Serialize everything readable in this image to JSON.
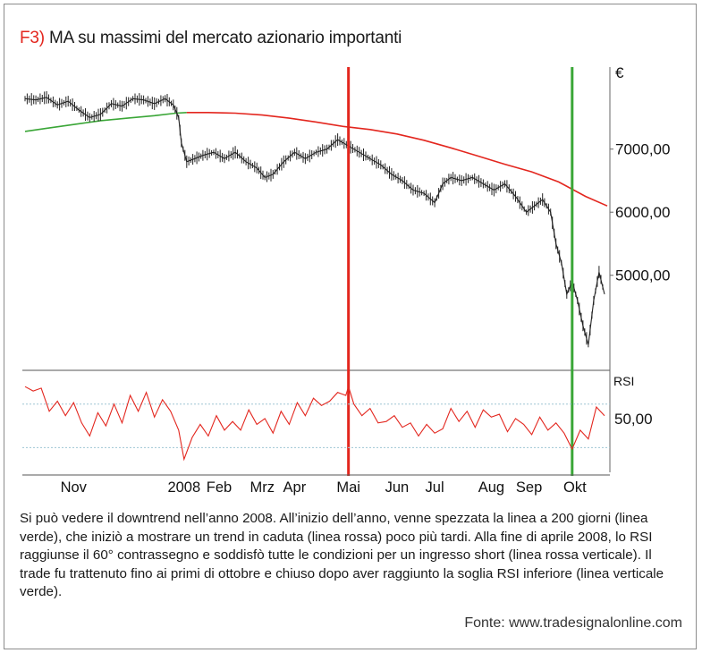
{
  "header": {
    "figure_label": "F3)",
    "title": "MA su massimi del mercato azionario importanti"
  },
  "caption": "Si può vedere il downtrend nell’anno 2008. All’inizio dell’anno, venne spezzata la linea a 200 giorni (linea verde), che iniziò a mostrare un trend in caduta (linea rossa) poco più tardi. Alla fine di aprile 2008, lo RSI raggiunse il 60° contrassegno e soddisfò tutte le condizioni per un ingresso short (linea rossa verticale). Il trade fu trattenuto fino ai primi di ottobre e chiuso dopo aver raggiunto la soglia RSI inferiore (linea verticale verde).",
  "source": "Fonte: www.tradesignalonline.com",
  "colors": {
    "accent_red": "#e3261e",
    "ma_green": "#3aa637",
    "ma_red": "#e3261e",
    "price": "#222222",
    "rsi": "#e3261e",
    "rsi_bands": "#9fc6d4"
  },
  "chart_data": [
    {
      "type": "line",
      "panel": "price",
      "unit_label": "€",
      "y_ticks": [
        "7000,00",
        "6000,00",
        "5000,00"
      ],
      "y_tick_values": [
        7000,
        6000,
        5000
      ],
      "ylim": [
        3550,
        8300
      ],
      "x_tick_labels": [
        "Nov",
        "2008",
        "Feb",
        "Mrz",
        "Apr",
        "Mai",
        "Jun",
        "Jul",
        "Aug",
        "Sep",
        "Okt"
      ],
      "x_tick_positions": [
        0.5,
        2.55,
        3.2,
        4.0,
        4.6,
        5.6,
        6.5,
        7.2,
        8.25,
        8.95,
        9.8
      ],
      "xlim": [
        -0.45,
        10.45
      ],
      "series": [
        {
          "kind": "price",
          "x": [
            -0.4,
            -0.2,
            0,
            0.2,
            0.4,
            0.6,
            0.8,
            1.0,
            1.2,
            1.4,
            1.6,
            1.8,
            2.0,
            2.2,
            2.35,
            2.45,
            2.5,
            2.6,
            2.75,
            2.9,
            3.1,
            3.3,
            3.5,
            3.7,
            3.9,
            4.05,
            4.2,
            4.4,
            4.6,
            4.8,
            5.0,
            5.2,
            5.4,
            5.6,
            5.8,
            6.0,
            6.2,
            6.4,
            6.6,
            6.8,
            7.0,
            7.2,
            7.35,
            7.5,
            7.7,
            7.9,
            8.1,
            8.3,
            8.5,
            8.7,
            8.9,
            9.05,
            9.2,
            9.35,
            9.45,
            9.55,
            9.65,
            9.75,
            9.85,
            9.95,
            10.05,
            10.15,
            10.25,
            10.35
          ],
          "y": [
            7800,
            7780,
            7820,
            7700,
            7760,
            7620,
            7500,
            7550,
            7720,
            7680,
            7800,
            7780,
            7720,
            7800,
            7700,
            7500,
            7100,
            6800,
            6850,
            6900,
            6950,
            6850,
            6950,
            6800,
            6700,
            6550,
            6600,
            6800,
            6950,
            6850,
            6950,
            7000,
            7150,
            7050,
            6950,
            6850,
            6750,
            6600,
            6500,
            6350,
            6300,
            6150,
            6450,
            6550,
            6500,
            6550,
            6450,
            6350,
            6450,
            6250,
            6000,
            6100,
            6200,
            6000,
            5500,
            5200,
            4700,
            4900,
            4600,
            4200,
            3900,
            4600,
            5050,
            4700
          ]
        },
        {
          "kind": "ma",
          "name": "",
          "x": [
            -0.4,
            0,
            0.5,
            1.0,
            1.5,
            2.0,
            2.4,
            2.6,
            3.0,
            3.5,
            4.0,
            4.5,
            5.0,
            5.5,
            6.0,
            6.5,
            7.0,
            7.5,
            8.0,
            8.5,
            9.0,
            9.5,
            10.0,
            10.4
          ],
          "y": [
            7280,
            7330,
            7390,
            7450,
            7490,
            7530,
            7570,
            7580,
            7580,
            7570,
            7540,
            7490,
            7430,
            7360,
            7310,
            7240,
            7140,
            7020,
            6890,
            6760,
            6640,
            6480,
            6250,
            6100
          ]
        }
      ],
      "ma_break_x": 2.45,
      "vlines": [
        {
          "name": "",
          "x": 5.6,
          "color": "#e3261e"
        },
        {
          "name": "",
          "x": 9.75,
          "color": "#3aa637"
        }
      ]
    },
    {
      "type": "line",
      "panel": "rsi",
      "panel_label": "RSI",
      "y_ticks": [
        "50,00"
      ],
      "y_tick_values": [
        50
      ],
      "ylim": [
        13,
        82
      ],
      "bands": [
        60,
        30
      ],
      "series": [
        {
          "name": "",
          "x": [
            -0.4,
            -0.25,
            -0.1,
            0.05,
            0.2,
            0.35,
            0.5,
            0.65,
            0.8,
            0.95,
            1.1,
            1.25,
            1.4,
            1.55,
            1.7,
            1.85,
            2.0,
            2.15,
            2.3,
            2.45,
            2.55,
            2.7,
            2.85,
            3.0,
            3.15,
            3.3,
            3.45,
            3.6,
            3.75,
            3.9,
            4.05,
            4.2,
            4.35,
            4.5,
            4.65,
            4.8,
            4.95,
            5.1,
            5.25,
            5.4,
            5.55,
            5.6,
            5.7,
            5.85,
            6.0,
            6.15,
            6.3,
            6.45,
            6.6,
            6.75,
            6.9,
            7.05,
            7.2,
            7.35,
            7.5,
            7.65,
            7.8,
            7.95,
            8.1,
            8.25,
            8.4,
            8.55,
            8.7,
            8.85,
            9.0,
            9.15,
            9.3,
            9.45,
            9.6,
            9.75,
            9.9,
            10.05,
            10.2,
            10.35
          ],
          "y": [
            72,
            69,
            71,
            55,
            62,
            52,
            61,
            47,
            38,
            54,
            45,
            60,
            47,
            66,
            55,
            68,
            51,
            63,
            55,
            42,
            22,
            37,
            46,
            38,
            52,
            42,
            48,
            42,
            56,
            46,
            50,
            40,
            55,
            46,
            61,
            52,
            64,
            59,
            62,
            68,
            66,
            72,
            60,
            52,
            57,
            47,
            48,
            52,
            44,
            47,
            38,
            46,
            40,
            43,
            57,
            48,
            55,
            44,
            56,
            51,
            53,
            41,
            50,
            46,
            39,
            51,
            42,
            47,
            40,
            29,
            42,
            36,
            58,
            52
          ]
        }
      ]
    }
  ]
}
